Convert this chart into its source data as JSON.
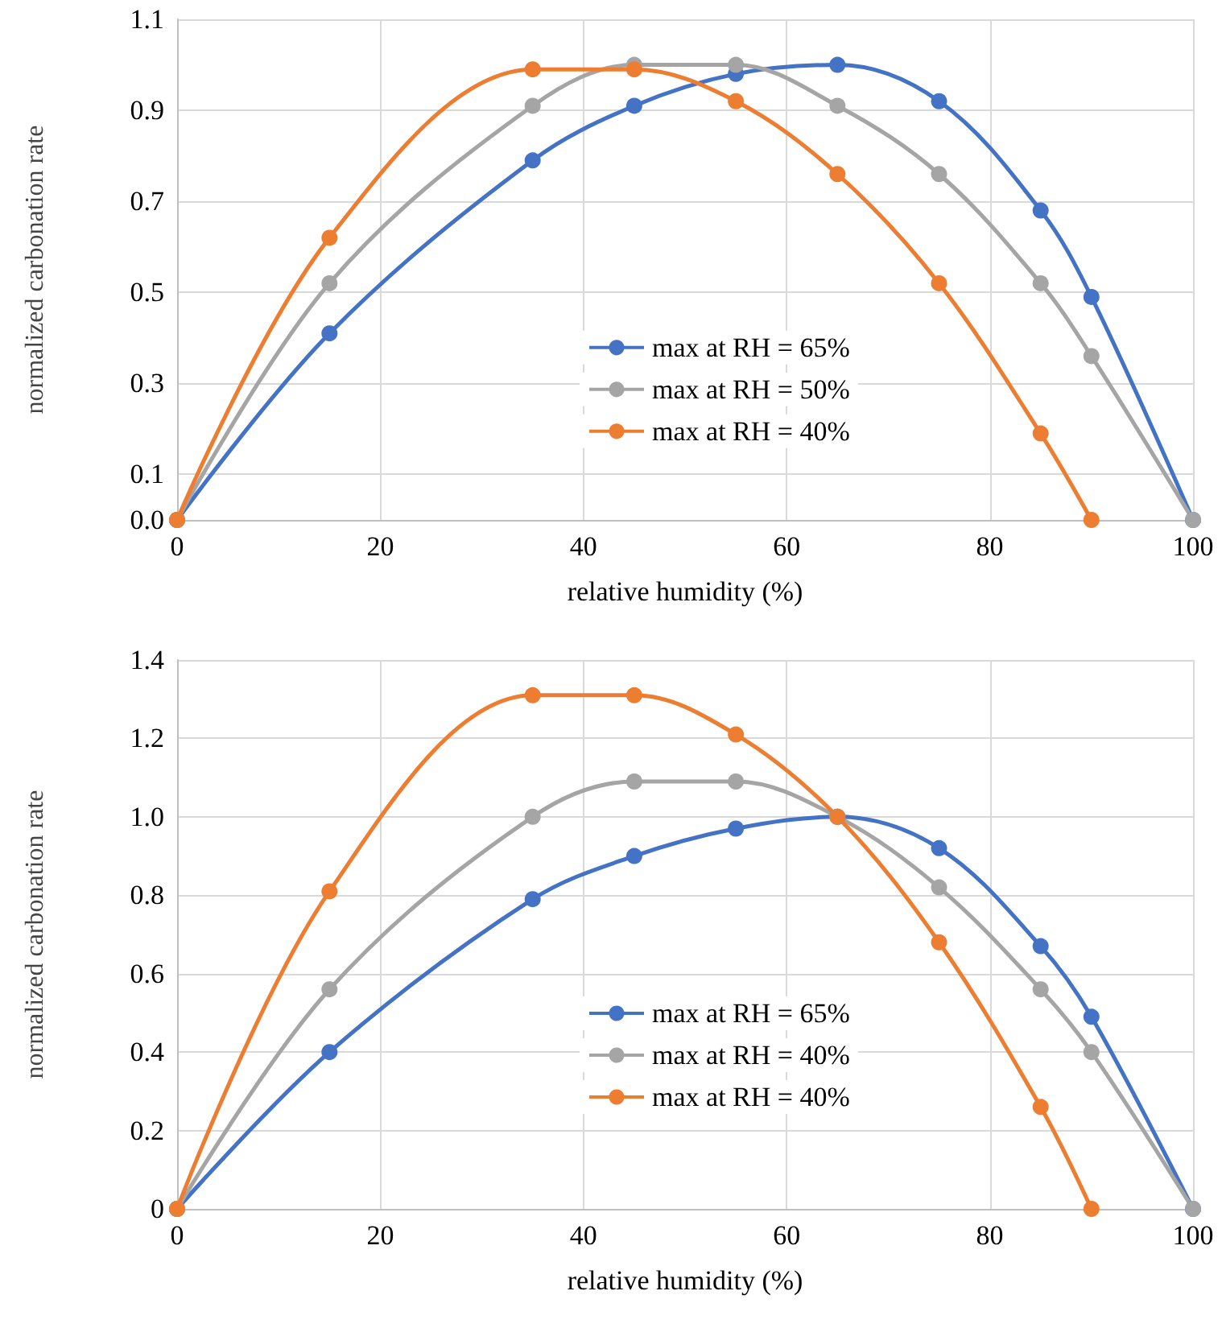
{
  "chart_data": [
    {
      "type": "line",
      "xlabel": "relative humidity (%)",
      "ylabel": "normalized carbonation rate",
      "xlim": [
        0,
        100
      ],
      "xticks": [
        0,
        20,
        40,
        60,
        80,
        100
      ],
      "ylim": [
        0,
        1.1
      ],
      "yticks": [
        {
          "value": 0,
          "label": "0.0"
        },
        0.1,
        0.3,
        0.5,
        0.7,
        0.9,
        1.1
      ],
      "grid": true,
      "legend": "right",
      "marker": "circle",
      "x": [
        0,
        15,
        35,
        45,
        55,
        65,
        75,
        85,
        90,
        100
      ],
      "series": [
        {
          "name": "max at RH = 65%",
          "color": "#4472c4",
          "values": [
            0,
            0.41,
            0.79,
            0.91,
            0.98,
            1.0,
            0.92,
            0.68,
            0.49,
            0
          ]
        },
        {
          "name": "max at RH = 50%",
          "color": "#a5a5a5",
          "x": [
            0,
            15,
            35,
            45,
            55,
            65,
            75,
            85,
            90,
            100
          ],
          "values": [
            0,
            0.52,
            0.91,
            1.0,
            1.0,
            0.91,
            0.76,
            0.52,
            0.36,
            0
          ]
        },
        {
          "name": "max at RH = 40%",
          "color": "#ed7d31",
          "x": [
            0,
            15,
            35,
            45,
            55,
            65,
            75,
            85,
            90
          ],
          "values": [
            0,
            0.62,
            0.99,
            0.99,
            0.92,
            0.76,
            0.52,
            0.19,
            0
          ]
        }
      ]
    },
    {
      "type": "line",
      "xlabel": "relative humidity (%)",
      "ylabel": "normalized carbonation rate",
      "xlim": [
        0,
        100
      ],
      "xticks": [
        0,
        20,
        40,
        60,
        80,
        100
      ],
      "ylim": [
        0,
        1.4
      ],
      "yticks": [
        0,
        0.2,
        0.4,
        0.6,
        0.8,
        {
          "value": 1,
          "label": "1.0"
        },
        1.2,
        1.4
      ],
      "grid": true,
      "legend": "right",
      "marker": "circle",
      "x": [
        0,
        15,
        35,
        45,
        55,
        65,
        75,
        85,
        90,
        100
      ],
      "series": [
        {
          "name": "max at RH = 65%",
          "color": "#4472c4",
          "values": [
            0,
            0.4,
            0.79,
            0.9,
            0.97,
            1.0,
            0.92,
            0.67,
            0.49,
            0
          ]
        },
        {
          "name": "max at RH = 40%",
          "color": "#a5a5a5",
          "values": [
            0,
            0.56,
            1.0,
            1.09,
            1.09,
            1.0,
            0.82,
            0.56,
            0.4,
            0
          ]
        },
        {
          "name": "max at RH = 40%",
          "color": "#ed7d31",
          "x": [
            0,
            15,
            35,
            45,
            55,
            65,
            75,
            85,
            90
          ],
          "values": [
            0,
            0.81,
            1.31,
            1.31,
            1.21,
            1.0,
            0.68,
            0.26,
            0
          ]
        }
      ]
    }
  ]
}
